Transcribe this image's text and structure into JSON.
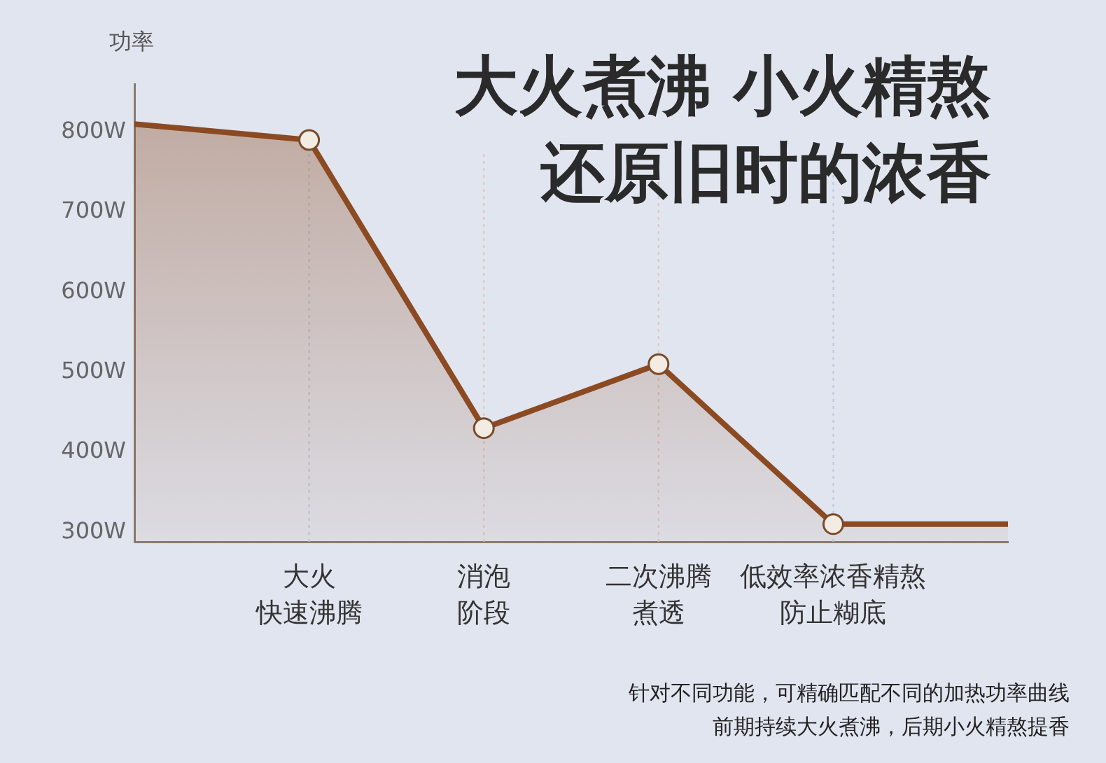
{
  "chart_data": {
    "type": "area",
    "title": "大火煮沸 小火精熬",
    "subtitle": "还原旧时的浓香",
    "ylabel": "功率",
    "categories": [
      null,
      "大火快速沸腾",
      "消泡阶段",
      "二次沸腾煮透",
      "低效率浓香精熬防止糊底",
      null
    ],
    "series": [
      {
        "color": "#8b4a22",
        "values": [
          810,
          790,
          430,
          510,
          310,
          310
        ]
      }
    ],
    "ylim": [
      288,
      860
    ],
    "yticks": [
      {
        "value": 300,
        "label": "300W"
      },
      {
        "value": 400,
        "label": "400W"
      },
      {
        "value": 500,
        "label": "500W"
      },
      {
        "value": 600,
        "label": "600W"
      },
      {
        "value": 700,
        "label": "700W"
      },
      {
        "value": 800,
        "label": "800W"
      }
    ],
    "ref_lines": [
      {
        "axis": "x",
        "value": "大火快速沸腾",
        "color": "#b8cce0",
        "line_style": "dotted"
      },
      {
        "axis": "x",
        "value": "消泡阶段",
        "color": "#e0c4c0",
        "line_style": "dotted"
      },
      {
        "axis": "x",
        "value": "二次沸腾煮透",
        "color": "#e0c4c0",
        "line_style": "dotted"
      },
      {
        "axis": "x",
        "value": "低效率浓香精熬防止糊底",
        "color": "#b8cce0",
        "line_style": "dotted"
      }
    ],
    "annotations": [
      "针对不同功能，可精确匹配不同的加热功率曲线",
      "前期持续大火煮沸，后期小火精熬提香"
    ],
    "marker": "circle",
    "line_style": "solid",
    "grid": false,
    "legend": false
  }
}
